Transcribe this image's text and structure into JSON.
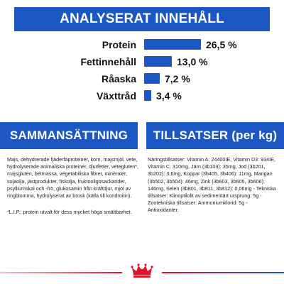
{
  "analysis": {
    "title": "ANALYSERAT INNEHÅLL",
    "rows": [
      {
        "label": "Protein",
        "value_text": "26,5 %",
        "value": 26.5
      },
      {
        "label": "Fettinnehåll",
        "value_text": "13,0 %",
        "value": 13.0
      },
      {
        "label": "Råaska",
        "value_text": "7,2 %",
        "value": 7.2
      },
      {
        "label": "Växttråd",
        "value_text": "3,4 %",
        "value": 3.4
      }
    ]
  },
  "composition": {
    "title": "SAMMANSÄTTNING",
    "text": "Majs, dehydrerade fjäderfäproteiner, korn, majsmjöl, vete, hydrolyserade animaliska proteiner, djurfetter, vetegluten*, majsgluten, betmassa, vegetabiliska fibrer, mineraler, sojaolja, jästprodukter, fiskolja, fruktooligosackarider, psylliumskal och -frö, glukosamin från kräftdjur, mjöl av ringblomma, hydrolyserat av brosk (källa till kondroitin).",
    "note": "*L.I.P.: protein utvalt för dess mycket höga smältbarhet."
  },
  "additives": {
    "title": "TILLSATSER (per kg)",
    "text": "Näringstillsatser: Vitamin A: 24400IE, Vitamin D3: 934IE, Vitamin C: 310mg, Järn (3b103): 35mg, Jod (3b201, 3b202): 3,6mg, Koppar (3b405, 3b406): 11mg, Mangan (3b502, 3b504): 46mg, Zink (3b603, 3b605, 3b606): 146mg, Selen (3b801, 3b811, 3b812): 0,06mg - Tekniska tillsatser: Klinoptilolit av sedimentärt ursprung: 5g - Zootekniska tillsatser: Ammoniumklorid: 5g - Antioxidanter."
  },
  "colors": {
    "brand_blue": "#1d57c4",
    "brand_red": "#e3132c"
  },
  "logo": {
    "icon": "crown-icon"
  }
}
